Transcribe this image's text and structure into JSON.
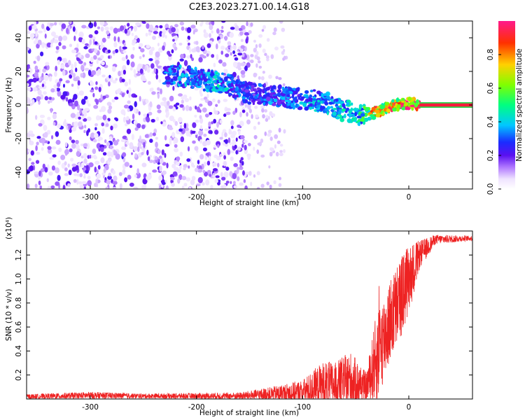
{
  "title": "C2E3.2023.271.00.14.G18",
  "colors": {
    "snr_line": "#ee2222",
    "spectrum_purple": "#7a1ef0",
    "band_red": "#ff1a3d",
    "band_green": "#2bd44a",
    "axis": "#000000"
  },
  "chart_data": [
    {
      "type": "heatmap",
      "title": "C2E3.2023.271.00.14.G18",
      "xlabel": "Height of straight line (km)",
      "ylabel": "Frequency (Hz)",
      "xlim": [
        -360,
        60
      ],
      "ylim": [
        -50,
        50
      ],
      "x_ticks": [
        -300,
        -200,
        -100,
        0
      ],
      "y_ticks": [
        -40,
        -20,
        0,
        20,
        40
      ],
      "colorbar": {
        "label": "Normalized spectral amplitude",
        "range": [
          0,
          1
        ],
        "ticks": [
          "0.0",
          "0.2",
          "0.4",
          "0.6",
          "0.8"
        ],
        "colormap": "rainbow (white, violet, blue, cyan, green, yellow, red, magenta)"
      },
      "features": {
        "scatter_region_km": [
          -360,
          -150
        ],
        "sparse_region_km": [
          -150,
          -115
        ],
        "ridge": [
          {
            "x": -230,
            "y": 18,
            "amp": 0.35
          },
          {
            "x": -210,
            "y": 17,
            "amp": 0.4
          },
          {
            "x": -195,
            "y": 15,
            "amp": 0.35
          },
          {
            "x": -180,
            "y": 14,
            "amp": 0.45
          },
          {
            "x": -170,
            "y": 12,
            "amp": 0.4
          },
          {
            "x": -150,
            "y": 7,
            "amp": 0.3
          },
          {
            "x": -130,
            "y": 6,
            "amp": 0.35
          },
          {
            "x": -110,
            "y": 4,
            "amp": 0.35
          },
          {
            "x": -90,
            "y": 3,
            "amp": 0.4
          },
          {
            "x": -75,
            "y": 1,
            "amp": 0.4
          },
          {
            "x": -65,
            "y": -3,
            "amp": 0.45
          },
          {
            "x": -55,
            "y": -4,
            "amp": 0.45
          },
          {
            "x": -45,
            "y": -6,
            "amp": 0.5
          },
          {
            "x": -35,
            "y": -5,
            "amp": 0.85
          },
          {
            "x": -25,
            "y": -3,
            "amp": 0.85
          },
          {
            "x": -15,
            "y": 0,
            "amp": 0.9
          },
          {
            "x": 0,
            "y": 1,
            "amp": 0.95
          },
          {
            "x": 10,
            "y": 0,
            "amp": 1.0
          },
          {
            "x": 60,
            "y": 0,
            "amp": 1.0
          }
        ]
      }
    },
    {
      "type": "line",
      "xlabel": "Height of straight line (km)",
      "ylabel": "SNR (10 * v/v)",
      "y_multiplier": "(x10⁴)",
      "xlim": [
        -360,
        60
      ],
      "ylim": [
        0,
        1.4
      ],
      "x_ticks": [
        -300,
        -200,
        -100,
        0
      ],
      "y_ticks": [
        "0.2",
        "0.4",
        "0.6",
        "0.8",
        "1.0",
        "1.2"
      ],
      "series": [
        {
          "color": "#ee2222",
          "envelope": [
            {
              "x": -360,
              "base": 0.02,
              "noise": 0.02
            },
            {
              "x": -300,
              "base": 0.03,
              "noise": 0.03
            },
            {
              "x": -250,
              "base": 0.025,
              "noise": 0.02
            },
            {
              "x": -160,
              "base": 0.025,
              "noise": 0.03
            },
            {
              "x": -130,
              "base": 0.04,
              "noise": 0.06
            },
            {
              "x": -100,
              "base": 0.06,
              "noise": 0.1
            },
            {
              "x": -80,
              "base": 0.12,
              "noise": 0.2
            },
            {
              "x": -70,
              "base": 0.12,
              "noise": 0.18
            },
            {
              "x": -55,
              "base": 0.15,
              "noise": 0.25
            },
            {
              "x": -40,
              "base": 0.1,
              "noise": 0.12
            },
            {
              "x": -30,
              "base": 0.35,
              "noise": 0.4
            },
            {
              "x": -20,
              "base": 0.6,
              "noise": 0.35
            },
            {
              "x": -10,
              "base": 0.8,
              "noise": 0.35
            },
            {
              "x": 0,
              "base": 1.0,
              "noise": 0.3
            },
            {
              "x": 10,
              "base": 1.2,
              "noise": 0.12
            },
            {
              "x": 25,
              "base": 1.33,
              "noise": 0.04
            },
            {
              "x": 60,
              "base": 1.34,
              "noise": 0.02
            }
          ]
        }
      ]
    }
  ]
}
